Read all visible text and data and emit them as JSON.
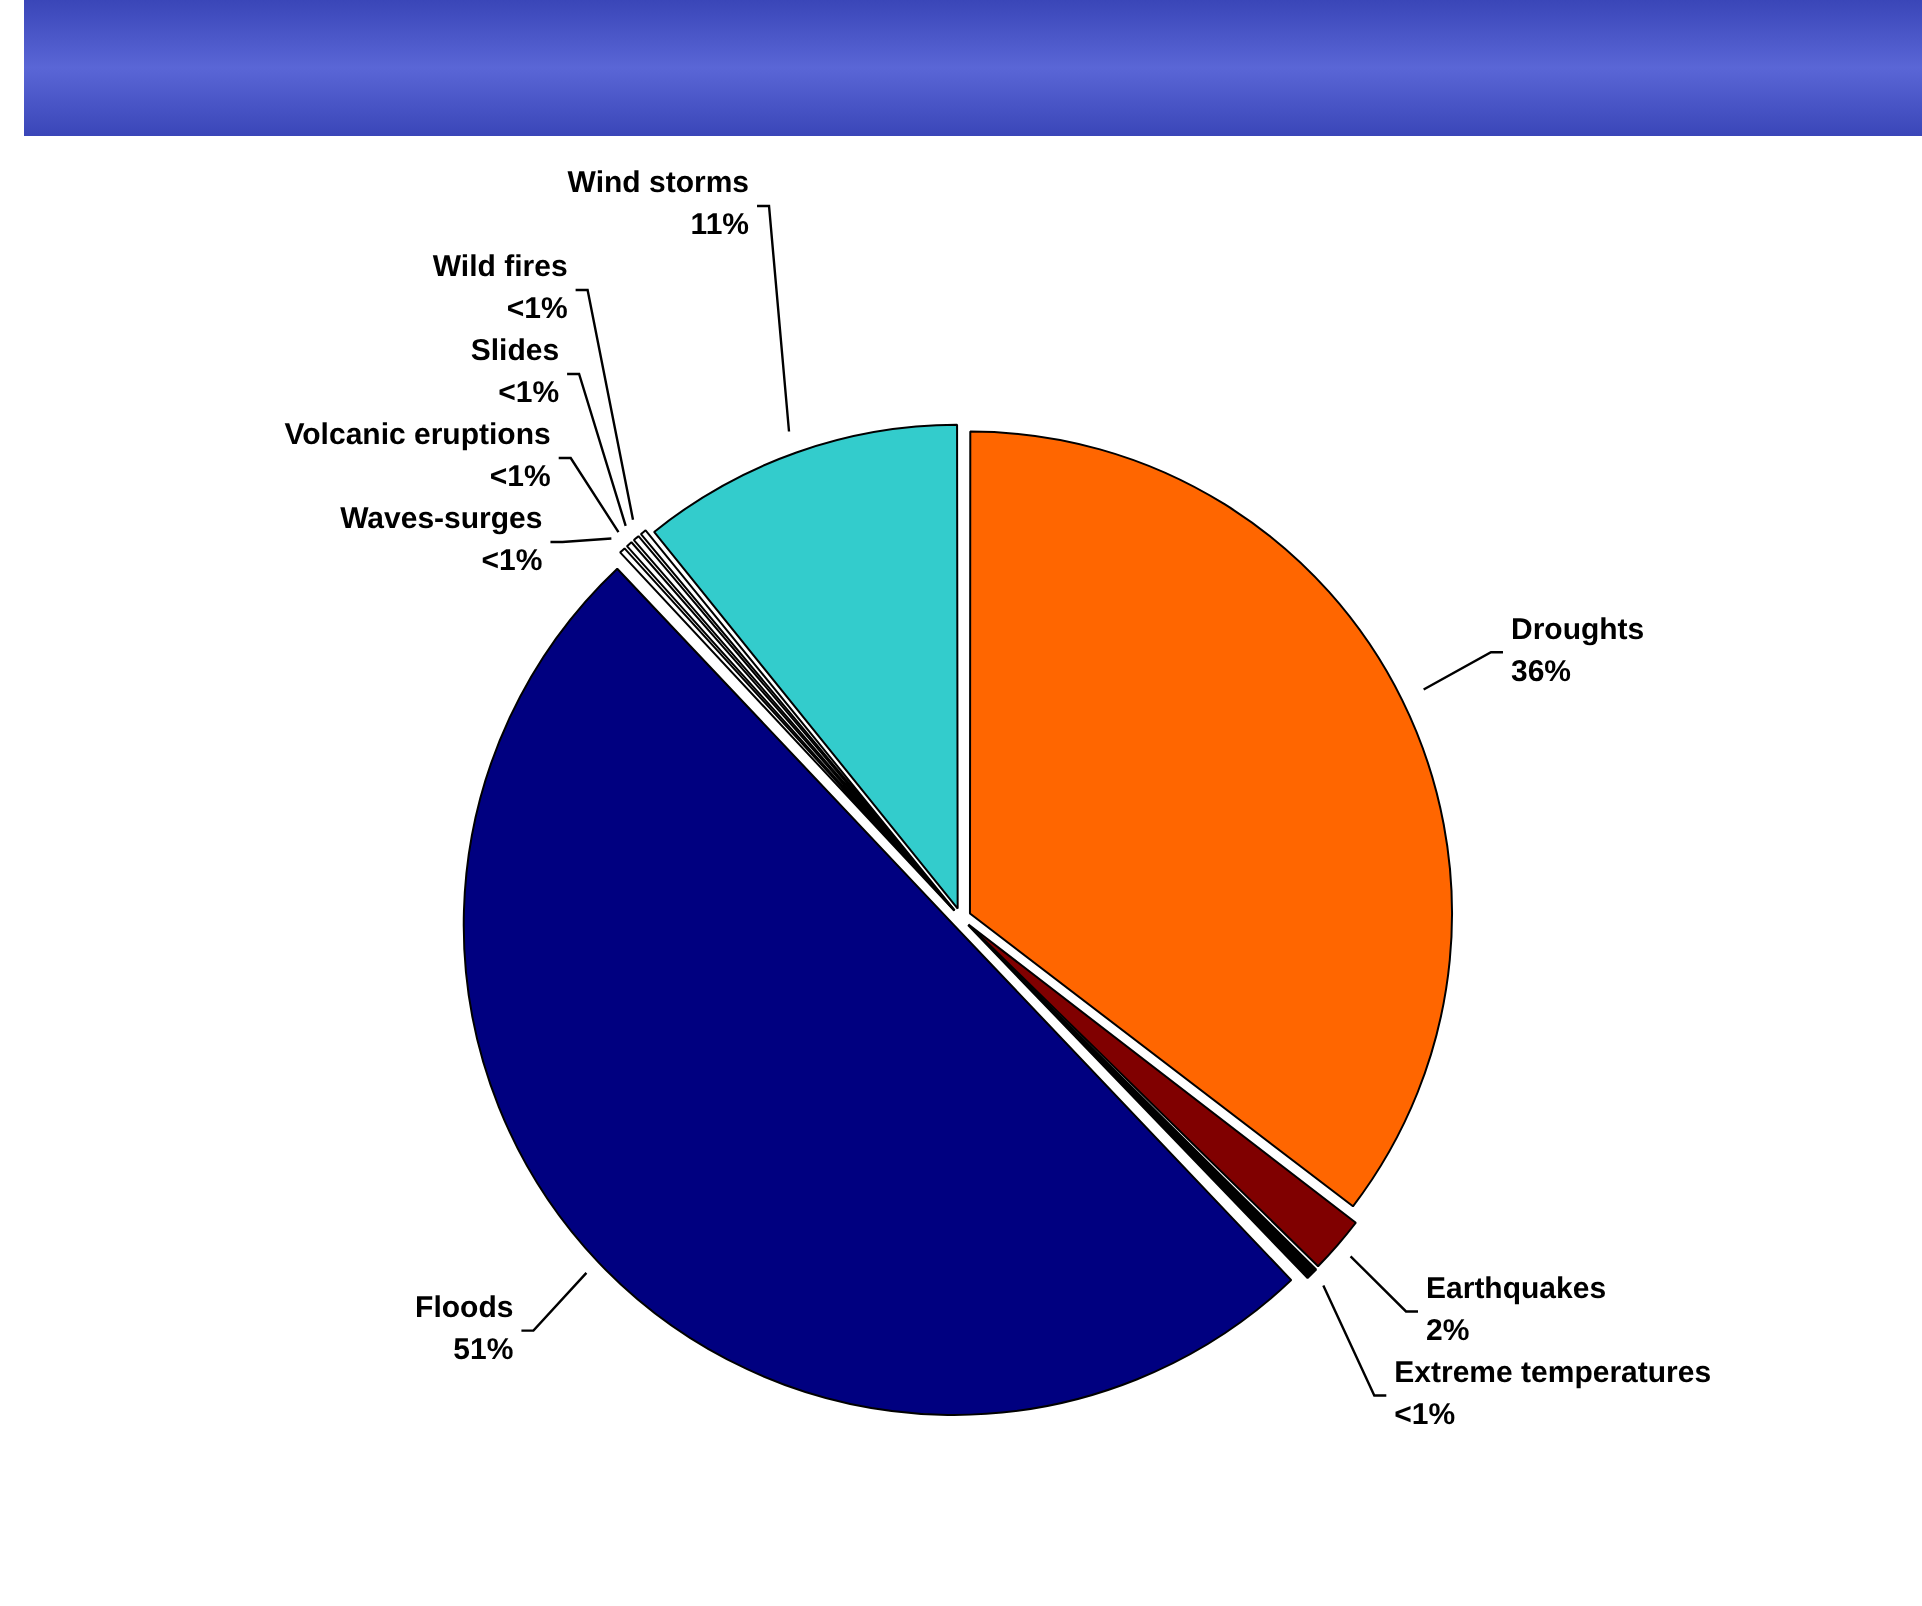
{
  "chart_data": {
    "type": "pie",
    "categories": [
      "Droughts",
      "Earthquakes",
      "Extreme temperatures",
      "Floods",
      "Waves-surges",
      "Volcanic eruptions",
      "Slides",
      "Wild fires",
      "Wind storms"
    ],
    "values": [
      36,
      2,
      0.5,
      51,
      0.3,
      0.3,
      0.3,
      0.3,
      11
    ],
    "colors": [
      "#ff6600",
      "#800000",
      "#000000",
      "#000080",
      "#ffffff",
      "#ffffff",
      "#ffffff",
      "#ffffff",
      "#33cccc"
    ],
    "value_labels": [
      "36%",
      "2%",
      "<1%",
      "51%",
      "<1%",
      "<1%",
      "<1%",
      "<1%",
      "11%"
    ]
  }
}
